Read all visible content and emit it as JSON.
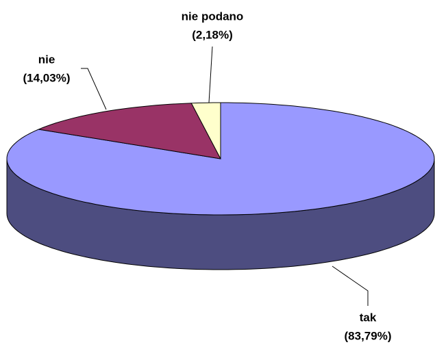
{
  "chart_data": {
    "type": "pie3d",
    "categories": [
      "tak",
      "nie",
      "nie podano"
    ],
    "values": [
      83.79,
      14.03,
      2.18
    ],
    "value_labels": [
      "(83,79%)",
      "(14,03%)",
      "(2,18%)"
    ],
    "colors": [
      "#9999ff",
      "#993366",
      "#ffffcc"
    ]
  }
}
